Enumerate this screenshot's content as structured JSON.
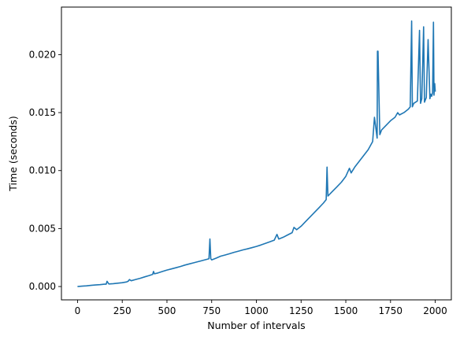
{
  "chart_data": {
    "type": "line",
    "title": "",
    "xlabel": "Number of intervals",
    "ylabel": "Time (seconds)",
    "xlim": [
      -90,
      2090
    ],
    "ylim": [
      -0.00115,
      0.0241
    ],
    "xticks": [
      0,
      250,
      500,
      750,
      1000,
      1250,
      1500,
      1750,
      2000
    ],
    "xtick_labels": [
      "0",
      "250",
      "500",
      "750",
      "1000",
      "1250",
      "1500",
      "1750",
      "2000"
    ],
    "yticks": [
      0.0,
      0.005,
      0.01,
      0.015,
      0.02
    ],
    "ytick_labels": [
      "0.000",
      "0.005",
      "0.010",
      "0.015",
      "0.020"
    ],
    "grid": false,
    "legend": false,
    "color": "#1f77b4",
    "series": [
      {
        "x": [
          0,
          25,
          50,
          75,
          100,
          125,
          150,
          160,
          165,
          175,
          200,
          225,
          250,
          275,
          285,
          290,
          300,
          325,
          350,
          375,
          400,
          420,
          425,
          430,
          450,
          475,
          500,
          525,
          550,
          575,
          600,
          625,
          650,
          675,
          700,
          725,
          735,
          740,
          745,
          750,
          775,
          800,
          825,
          850,
          875,
          900,
          925,
          950,
          975,
          1000,
          1025,
          1050,
          1075,
          1100,
          1115,
          1125,
          1150,
          1175,
          1200,
          1210,
          1225,
          1250,
          1275,
          1300,
          1325,
          1350,
          1375,
          1390,
          1395,
          1400,
          1425,
          1450,
          1475,
          1500,
          1520,
          1530,
          1550,
          1575,
          1600,
          1625,
          1650,
          1660,
          1675,
          1677,
          1680,
          1690,
          1700,
          1725,
          1750,
          1775,
          1790,
          1800,
          1825,
          1850,
          1860,
          1868,
          1872,
          1880,
          1900,
          1912,
          1918,
          1925,
          1935,
          1940,
          1950,
          1960,
          1970,
          1975,
          1980,
          1985,
          1990,
          1993,
          1997,
          2000
        ],
        "y": [
          0.0,
          3e-05,
          6e-05,
          0.0001,
          0.00013,
          0.00016,
          0.0002,
          0.0002,
          0.00045,
          0.00022,
          0.00025,
          0.00029,
          0.00033,
          0.0004,
          0.00048,
          0.0006,
          0.0005,
          0.00061,
          0.00071,
          0.00083,
          0.00095,
          0.00105,
          0.0013,
          0.0011,
          0.00117,
          0.0013,
          0.00142,
          0.00152,
          0.00162,
          0.00173,
          0.00185,
          0.00195,
          0.00205,
          0.00215,
          0.00225,
          0.00235,
          0.0024,
          0.0041,
          0.0024,
          0.0023,
          0.00245,
          0.00262,
          0.00272,
          0.00283,
          0.00295,
          0.00305,
          0.00316,
          0.00325,
          0.00335,
          0.00346,
          0.00358,
          0.00372,
          0.00385,
          0.004,
          0.0045,
          0.0041,
          0.00425,
          0.00445,
          0.00465,
          0.0051,
          0.0049,
          0.0052,
          0.0056,
          0.006,
          0.0064,
          0.0068,
          0.0072,
          0.0075,
          0.0103,
          0.0078,
          0.0082,
          0.0086,
          0.009,
          0.0095,
          0.0102,
          0.0098,
          0.0103,
          0.0108,
          0.0113,
          0.0118,
          0.0125,
          0.0146,
          0.0128,
          0.0203,
          0.0203,
          0.0131,
          0.0135,
          0.0139,
          0.0143,
          0.0146,
          0.015,
          0.0148,
          0.015,
          0.0153,
          0.0155,
          0.0229,
          0.0155,
          0.0158,
          0.016,
          0.0221,
          0.0158,
          0.0162,
          0.0224,
          0.0159,
          0.0163,
          0.0213,
          0.0162,
          0.0166,
          0.0164,
          0.0167,
          0.0228,
          0.0165,
          0.0175,
          0.0168
        ]
      }
    ]
  }
}
